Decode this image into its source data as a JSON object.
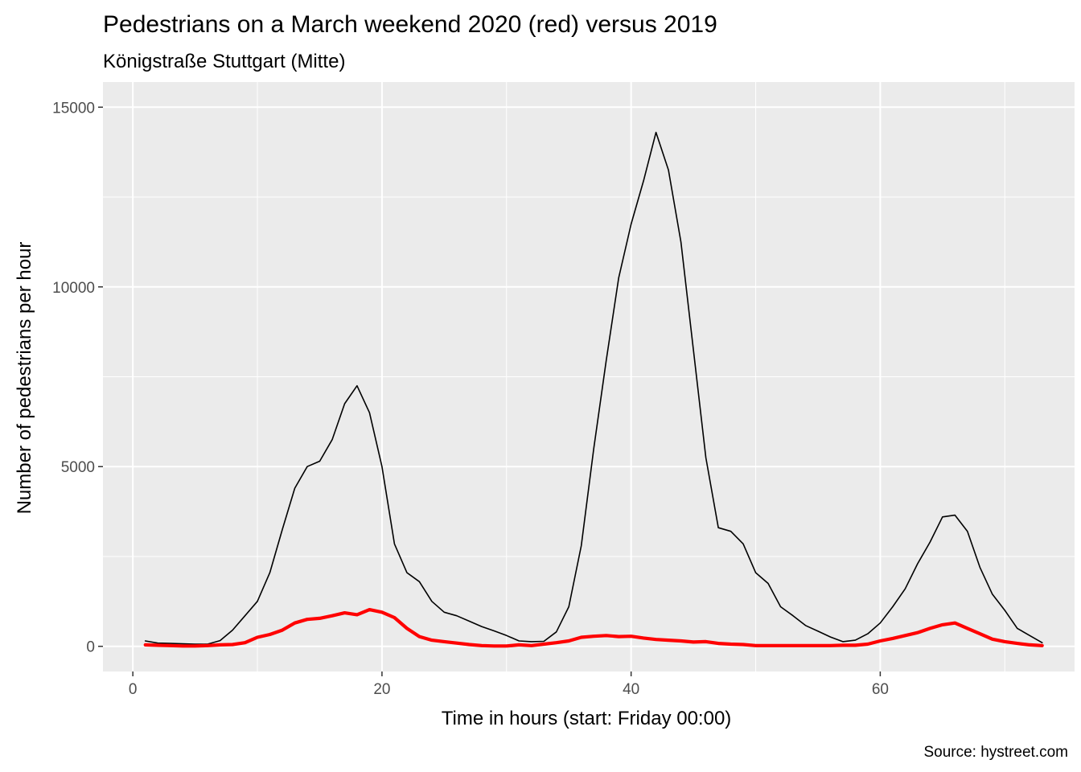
{
  "chart_data": {
    "type": "line",
    "title": "Pedestrians on a March weekend 2020 (red) versus 2019",
    "subtitle": "Königstraße Stuttgart (Mitte)",
    "xlabel": "Time in hours (start: Friday 00:00)",
    "ylabel": "Number of pedestrians per hour",
    "caption": "Source: hystreet.com",
    "xlim": [
      -2.4,
      75.6
    ],
    "ylim": [
      -700,
      15700
    ],
    "x_ticks": [
      0,
      20,
      40,
      60
    ],
    "x_tick_labels": [
      "0",
      "20",
      "40",
      "60"
    ],
    "y_ticks": [
      0,
      5000,
      10000,
      15000
    ],
    "y_tick_labels": [
      "0",
      "5000",
      "10000",
      "15000"
    ],
    "grid": true,
    "legend": "none",
    "colors": {
      "panel": "#ebebeb",
      "grid": "#ffffff",
      "series_2019": "#000000",
      "series_2020": "#ff0000"
    },
    "x": [
      1,
      2,
      3,
      4,
      5,
      6,
      7,
      8,
      9,
      10,
      11,
      12,
      13,
      14,
      15,
      16,
      17,
      18,
      19,
      20,
      21,
      22,
      23,
      24,
      25,
      26,
      27,
      28,
      29,
      30,
      31,
      32,
      33,
      34,
      35,
      36,
      37,
      38,
      39,
      40,
      41,
      42,
      43,
      44,
      45,
      46,
      47,
      48,
      49,
      50,
      51,
      52,
      53,
      54,
      55,
      56,
      57,
      58,
      59,
      60,
      61,
      62,
      63,
      64,
      65,
      66,
      67,
      68,
      69,
      70,
      71,
      72,
      73
    ],
    "series": [
      {
        "values": [
          150,
          90,
          80,
          70,
          60,
          60,
          160,
          450,
          850,
          1250,
          2050,
          3250,
          4400,
          5000,
          5150,
          5750,
          6750,
          7250,
          6500,
          5000,
          2850,
          2050,
          1800,
          1250,
          950,
          850,
          700,
          550,
          430,
          300,
          150,
          130,
          140,
          400,
          1100,
          2800,
          5500,
          7950,
          10250,
          11750,
          12950,
          14300,
          13250,
          11250,
          8250,
          5250,
          3300,
          3200,
          2850,
          2050,
          1750,
          1100,
          850,
          580,
          420,
          260,
          130,
          170,
          350,
          650,
          1100,
          1600,
          2300,
          2900,
          3600,
          3650,
          3200,
          2200,
          1450,
          1000,
          500,
          300,
          100
        ],
        "color": "#000000"
      },
      {
        "values": [
          40,
          30,
          20,
          10,
          10,
          20,
          40,
          50,
          100,
          250,
          330,
          450,
          650,
          750,
          780,
          850,
          930,
          880,
          1020,
          950,
          800,
          500,
          270,
          170,
          130,
          90,
          50,
          20,
          10,
          10,
          40,
          20,
          60,
          100,
          150,
          250,
          280,
          300,
          270,
          280,
          230,
          190,
          170,
          150,
          120,
          130,
          80,
          60,
          50,
          20,
          20,
          20,
          20,
          20,
          20,
          20,
          30,
          30,
          60,
          150,
          220,
          300,
          380,
          500,
          600,
          650,
          500,
          350,
          200,
          130,
          80,
          40,
          20
        ],
        "color": "#ff0000"
      }
    ]
  }
}
